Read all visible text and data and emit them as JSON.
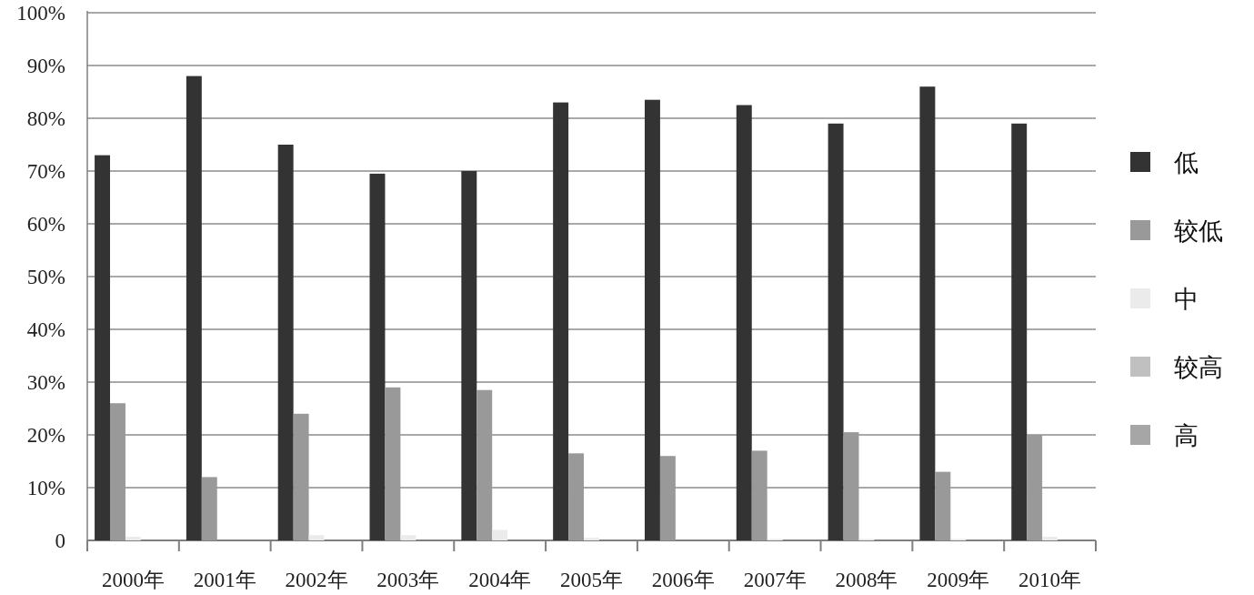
{
  "chart_data": {
    "type": "bar",
    "categories": [
      "2000年",
      "2001年",
      "2002年",
      "2003年",
      "2004年",
      "2005年",
      "2006年",
      "2007年",
      "2008年",
      "2009年",
      "2010年"
    ],
    "series": [
      {
        "name": "低",
        "color": "#333333",
        "values": [
          73,
          88,
          75,
          69.5,
          70,
          83,
          83.5,
          82.5,
          79,
          86,
          79
        ]
      },
      {
        "name": "较低",
        "color": "#999999",
        "values": [
          26,
          12,
          24,
          29,
          28.5,
          16.5,
          16,
          17,
          20.5,
          13,
          20
        ]
      },
      {
        "name": "中",
        "color": "#ebebeb",
        "values": [
          0.7,
          0,
          1,
          1,
          2,
          0.5,
          0,
          0.3,
          0.3,
          0.3,
          0.7
        ]
      },
      {
        "name": "较高",
        "color": "#c0c0c0",
        "values": [
          0,
          0,
          0,
          0,
          0,
          0,
          0,
          0,
          0,
          0,
          0
        ]
      },
      {
        "name": "高",
        "color": "#a6a6a6",
        "values": [
          0,
          0,
          0,
          0,
          0,
          0,
          0,
          0,
          0,
          0,
          0
        ]
      }
    ],
    "ylim": [
      0,
      100
    ],
    "yticks": [
      {
        "value": 0,
        "label": "0"
      },
      {
        "value": 10,
        "label": "10%"
      },
      {
        "value": 20,
        "label": "20%"
      },
      {
        "value": 30,
        "label": "30%"
      },
      {
        "value": 40,
        "label": "40%"
      },
      {
        "value": 50,
        "label": "50%"
      },
      {
        "value": 60,
        "label": "60%"
      },
      {
        "value": 70,
        "label": "70%"
      },
      {
        "value": 80,
        "label": "80%"
      },
      {
        "value": 90,
        "label": "90%"
      },
      {
        "value": 100,
        "label": "100%"
      }
    ],
    "grid": "y",
    "legend": "right"
  }
}
